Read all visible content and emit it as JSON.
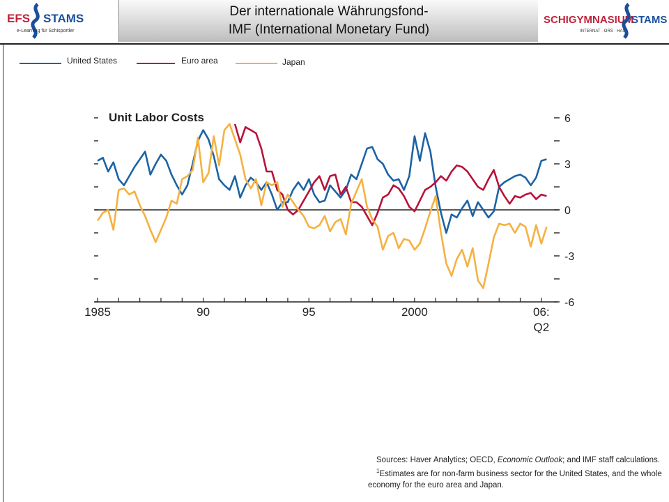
{
  "header": {
    "title_line1": "Der internationale Währungsfond-",
    "title_line2": "IMF (International Monetary Fund)",
    "logo_left": {
      "text1": "EFS",
      "text2": "STAMS",
      "sub": "e-Learning für Schisportler"
    },
    "logo_right": {
      "text1": "SCHIGYMNASIUM",
      "text2": "STAMS",
      "sub": "INTERNAT · ORS · HAS"
    }
  },
  "colors": {
    "us": "#1b63a6",
    "euro": "#b8123a",
    "japan": "#f5b142",
    "axis": "#222222"
  },
  "chart_data": {
    "type": "line",
    "title": "Unit Labor Costs",
    "x_ticks": [
      "1985",
      "90",
      "95",
      "2000",
      "06:"
    ],
    "x_tick_sub": "Q2",
    "x_range": [
      1985,
      2006.5
    ],
    "y_right_ticks": [
      "6",
      "3",
      "0",
      "-3",
      "-6"
    ],
    "ylim": [
      -6,
      6
    ],
    "zero_line": true,
    "legend_position": "top",
    "series": [
      {
        "name": "United States",
        "key": "us",
        "x": [
          1985,
          1985.25,
          1985.5,
          1985.75,
          1986,
          1986.25,
          1986.5,
          1986.75,
          1987,
          1987.25,
          1987.5,
          1987.75,
          1988,
          1988.25,
          1988.5,
          1988.75,
          1989,
          1989.25,
          1989.5,
          1989.75,
          1990,
          1990.25,
          1990.5,
          1990.75,
          1991,
          1991.25,
          1991.5,
          1991.75,
          1992,
          1992.25,
          1992.5,
          1992.75,
          1993,
          1993.25,
          1993.5,
          1993.75,
          1994,
          1994.25,
          1994.5,
          1994.75,
          1995,
          1995.25,
          1995.5,
          1995.75,
          1996,
          1996.25,
          1996.5,
          1996.75,
          1997,
          1997.25,
          1997.5,
          1997.75,
          1998,
          1998.25,
          1998.5,
          1998.75,
          1999,
          1999.25,
          1999.5,
          1999.75,
          2000,
          2000.25,
          2000.5,
          2000.75,
          2001,
          2001.25,
          2001.5,
          2001.75,
          2002,
          2002.25,
          2002.5,
          2002.75,
          2003,
          2003.25,
          2003.5,
          2003.75,
          2004,
          2004.25,
          2004.5,
          2004.75,
          2005,
          2005.25,
          2005.5,
          2005.75,
          2006,
          2006.25
        ],
        "values": [
          3.2,
          3.4,
          2.5,
          3.1,
          2.0,
          1.6,
          2.2,
          2.8,
          3.3,
          3.8,
          2.3,
          3.0,
          3.6,
          3.2,
          2.3,
          1.6,
          1.0,
          1.6,
          3.0,
          4.5,
          5.2,
          4.6,
          3.5,
          2.0,
          1.6,
          1.3,
          2.2,
          0.8,
          1.6,
          2.1,
          1.8,
          1.3,
          1.8,
          1.0,
          0.0,
          0.5,
          0.5,
          1.3,
          1.8,
          1.3,
          2.0,
          1.0,
          0.5,
          0.6,
          1.6,
          1.2,
          0.8,
          1.3,
          2.3,
          2.0,
          3.0,
          4.0,
          4.1,
          3.3,
          3.0,
          2.3,
          1.9,
          2.0,
          1.3,
          2.2,
          4.8,
          3.2,
          5.0,
          3.8,
          1.5,
          -0.2,
          -1.5,
          -0.3,
          -0.5,
          0.1,
          0.6,
          -0.4,
          0.5,
          0.0,
          -0.5,
          -0.1,
          1.5,
          1.8,
          2.0,
          2.2,
          2.3,
          2.1,
          1.6,
          2.1,
          3.2,
          3.3
        ]
      },
      {
        "name": "Euro area",
        "key": "euro",
        "x": [
          1991.5,
          1991.75,
          1992,
          1992.25,
          1992.5,
          1992.75,
          1993,
          1993.25,
          1993.5,
          1993.75,
          1994,
          1994.25,
          1994.5,
          1994.75,
          1995,
          1995.25,
          1995.5,
          1995.75,
          1996,
          1996.25,
          1996.5,
          1996.75,
          1997,
          1997.25,
          1997.5,
          1997.75,
          1998,
          1998.25,
          1998.5,
          1998.75,
          1999,
          1999.25,
          1999.5,
          1999.75,
          2000,
          2000.25,
          2000.5,
          2000.75,
          2001,
          2001.25,
          2001.5,
          2001.75,
          2002,
          2002.25,
          2002.5,
          2002.75,
          2003,
          2003.25,
          2003.5,
          2003.75,
          2004,
          2004.25,
          2004.5,
          2004.75,
          2005,
          2005.25,
          2005.5,
          2005.75,
          2006,
          2006.25
        ],
        "values": [
          5.6,
          4.4,
          5.4,
          5.2,
          5.0,
          4.0,
          2.5,
          2.5,
          1.3,
          1.0,
          0.0,
          -0.3,
          0.0,
          0.6,
          1.2,
          1.8,
          2.2,
          1.3,
          2.2,
          2.3,
          1.0,
          1.5,
          0.5,
          0.5,
          0.2,
          -0.4,
          -1.0,
          -0.2,
          0.8,
          1.0,
          1.6,
          1.4,
          0.9,
          0.2,
          -0.1,
          0.6,
          1.3,
          1.5,
          1.8,
          2.2,
          1.9,
          2.5,
          2.9,
          2.8,
          2.5,
          2.0,
          1.5,
          1.3,
          2.0,
          2.6,
          1.5,
          0.9,
          0.4,
          0.9,
          0.8,
          1.0,
          1.1,
          0.7,
          1.0,
          0.9
        ]
      },
      {
        "name": "Japan",
        "key": "japan",
        "x": [
          1985,
          1985.25,
          1985.5,
          1985.75,
          1986,
          1986.25,
          1986.5,
          1986.75,
          1987,
          1987.25,
          1987.5,
          1987.75,
          1988,
          1988.25,
          1988.5,
          1988.75,
          1989,
          1989.25,
          1989.5,
          1989.75,
          1990,
          1990.25,
          1990.5,
          1990.75,
          1991,
          1991.25,
          1991.5,
          1991.75,
          1992,
          1992.25,
          1992.5,
          1992.75,
          1993,
          1993.25,
          1993.5,
          1993.75,
          1994,
          1994.25,
          1994.5,
          1994.75,
          1995,
          1995.25,
          1995.5,
          1995.75,
          1996,
          1996.25,
          1996.5,
          1996.75,
          1997,
          1997.25,
          1997.5,
          1997.75,
          1998,
          1998.25,
          1998.5,
          1998.75,
          1999,
          1999.25,
          1999.5,
          1999.75,
          2000,
          2000.25,
          2000.5,
          2000.75,
          2001,
          2001.25,
          2001.5,
          2001.75,
          2002,
          2002.25,
          2002.5,
          2002.75,
          2003,
          2003.25,
          2003.5,
          2003.75,
          2004,
          2004.25,
          2004.5,
          2004.75,
          2005,
          2005.25,
          2005.5,
          2005.75,
          2006,
          2006.25
        ],
        "values": [
          -0.7,
          -0.2,
          0.0,
          -1.3,
          1.3,
          1.4,
          1.0,
          1.2,
          0.3,
          -0.4,
          -1.3,
          -2.1,
          -1.3,
          -0.5,
          0.6,
          0.4,
          2.0,
          2.2,
          2.6,
          4.7,
          1.8,
          2.4,
          4.8,
          2.9,
          5.2,
          5.6,
          4.6,
          3.6,
          2.0,
          1.4,
          2.0,
          0.3,
          1.8,
          1.6,
          1.8,
          0.2,
          1.0,
          0.5,
          0.0,
          -0.4,
          -1.1,
          -1.2,
          -1.0,
          -0.4,
          -1.4,
          -0.8,
          -0.6,
          -1.6,
          0.4,
          1.2,
          2.0,
          0.2,
          -0.6,
          -1.1,
          -2.6,
          -1.7,
          -1.5,
          -2.5,
          -1.9,
          -2.0,
          -2.6,
          -2.2,
          -1.2,
          -0.1,
          0.9,
          -1.5,
          -3.5,
          -4.3,
          -3.2,
          -2.6,
          -3.7,
          -2.5,
          -4.6,
          -5.1,
          -3.5,
          -1.8,
          -0.9,
          -1.0,
          -0.9,
          -1.5,
          -0.9,
          -1.1,
          -2.4,
          -1.0,
          -2.2,
          -1.1
        ]
      }
    ]
  },
  "footnote": {
    "line1_pre": "Sources: Haver Analytics; OECD, ",
    "line1_italic": "Economic Outlook",
    "line1_post": "; and IMF staff calculations.",
    "marker": "1",
    "line2": "Estimates are for non-farm business sector for the United States, and the whole",
    "line3": "economy for the euro area and Japan."
  }
}
